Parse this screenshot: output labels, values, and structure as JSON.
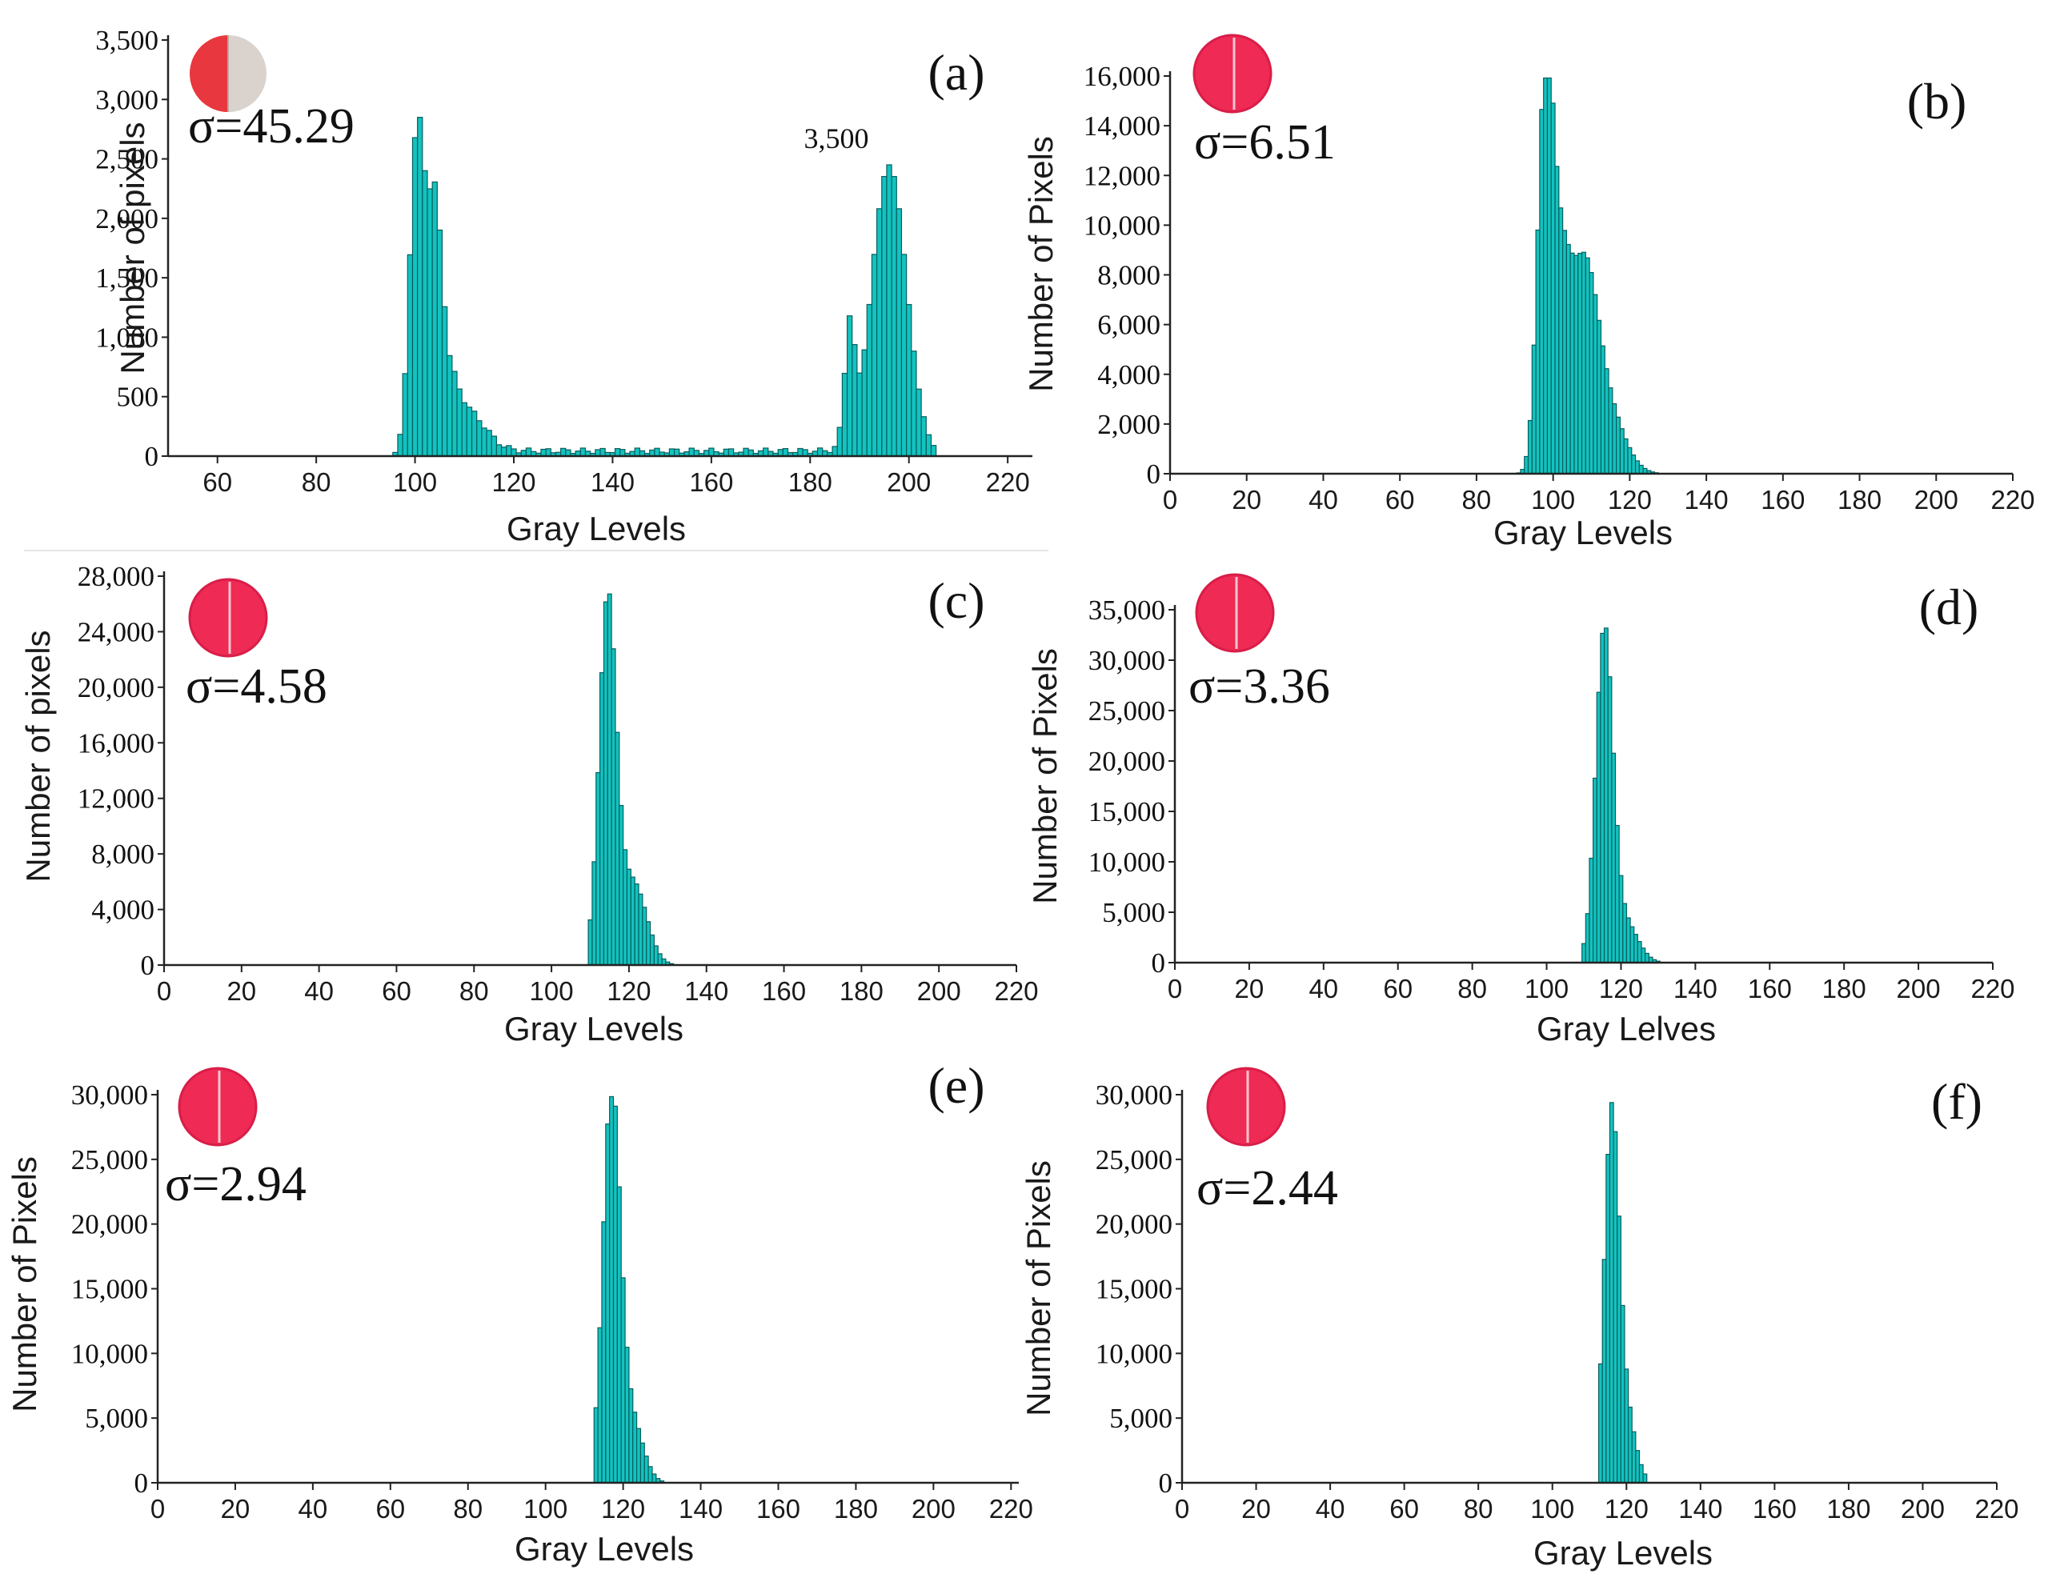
{
  "chart_data": [
    {
      "type": "bar",
      "panel_label": "(a)",
      "sigma": "σ=45.29",
      "xlabel": "Gray Levels",
      "ylabel": "Number of pixels",
      "xlim": [
        50,
        225
      ],
      "ylim": [
        0,
        3500
      ],
      "xticks": [
        60,
        80,
        100,
        120,
        140,
        160,
        180,
        200,
        220
      ],
      "yticks": [
        0,
        500,
        1000,
        1500,
        2000,
        2500,
        3000,
        3500
      ],
      "ytick_labels": [
        "0",
        "500",
        "1,000",
        "1,500",
        "2,000",
        "2,500",
        "3,000",
        "3,500"
      ],
      "annotation": "3,500",
      "bar_color": "#12c3c0",
      "thumbnail": "half-red",
      "peaks": [
        {
          "center": 100.5,
          "sigma": 1.5,
          "amp": 2750
        },
        {
          "center": 104,
          "sigma": 1.3,
          "amp": 1500
        },
        {
          "center": 105.5,
          "sigma": 2.5,
          "amp": 700
        },
        {
          "center": 111,
          "sigma": 3.5,
          "amp": 300
        },
        {
          "center": 188,
          "sigma": 1.0,
          "amp": 1000
        },
        {
          "center": 196,
          "sigma": 3.5,
          "amp": 2450
        }
      ],
      "baseline": 45,
      "baseline_range": [
        108,
        186
      ],
      "support": [
        96,
        205
      ]
    },
    {
      "type": "bar",
      "panel_label": "(b)",
      "sigma": "σ=6.51",
      "xlabel": "Gray Levels",
      "ylabel": "Number of Pixels",
      "xlim": [
        0,
        220
      ],
      "ylim": [
        0,
        16000
      ],
      "xticks": [
        0,
        20,
        40,
        60,
        80,
        100,
        120,
        140,
        160,
        180,
        200,
        220
      ],
      "yticks": [
        0,
        2000,
        4000,
        6000,
        8000,
        10000,
        12000,
        14000,
        16000
      ],
      "ytick_labels": [
        "0",
        "2,000",
        "4,000",
        "6,000",
        "8,000",
        "10,000",
        "12,000",
        "14,000",
        "16,000"
      ],
      "bar_color": "#12c3c0",
      "thumbnail": "full-red",
      "peaks": [
        {
          "center": 98,
          "sigma": 2.0,
          "amp": 15500
        },
        {
          "center": 102,
          "sigma": 2.5,
          "amp": 6800
        },
        {
          "center": 108,
          "sigma": 3.5,
          "amp": 7500
        },
        {
          "center": 114,
          "sigma": 4.5,
          "amp": 2500
        }
      ],
      "support": [
        88,
        135
      ]
    },
    {
      "type": "bar",
      "panel_label": "(c)",
      "sigma": "σ=4.58",
      "xlabel": "Gray Levels",
      "ylabel": "Number of pixels",
      "xlim": [
        0,
        220
      ],
      "ylim": [
        0,
        28000
      ],
      "xticks": [
        0,
        20,
        40,
        60,
        80,
        100,
        120,
        140,
        160,
        180,
        200,
        220
      ],
      "yticks": [
        0,
        4000,
        8000,
        12000,
        16000,
        20000,
        24000,
        28000
      ],
      "ytick_labels": [
        "0",
        "4,000",
        "8,000",
        "12,000",
        "16,000",
        "20,000",
        "24,000",
        "28,000"
      ],
      "bar_color": "#12c3c0",
      "thumbnail": "full-red",
      "peaks": [
        {
          "center": 114.5,
          "sigma": 2.2,
          "amp": 26000
        },
        {
          "center": 121,
          "sigma": 3.5,
          "amp": 6000
        }
      ],
      "support": [
        110,
        137
      ]
    },
    {
      "type": "bar",
      "panel_label": "(d)",
      "sigma": "σ=3.36",
      "xlabel": "Gray Lelves",
      "ylabel": "Number of Pixels",
      "xlim": [
        0,
        220
      ],
      "ylim": [
        0,
        35000
      ],
      "xticks": [
        0,
        20,
        40,
        60,
        80,
        100,
        120,
        140,
        160,
        180,
        200,
        220
      ],
      "yticks": [
        0,
        5000,
        10000,
        15000,
        20000,
        25000,
        30000,
        35000
      ],
      "ytick_labels": [
        "0",
        "5,000",
        "10,000",
        "15,000",
        "20,000",
        "25,000",
        "30,000",
        "35,000"
      ],
      "bar_color": "#12c3c0",
      "thumbnail": "full-red",
      "peaks": [
        {
          "center": 115.5,
          "sigma": 2.3,
          "amp": 32500
        },
        {
          "center": 121,
          "sigma": 3.5,
          "amp": 4000
        }
      ],
      "support": [
        110,
        137
      ]
    },
    {
      "type": "bar",
      "panel_label": "(e)",
      "sigma": "σ=2.94",
      "xlabel": "Gray Levels",
      "ylabel": "Number of Pixels",
      "xlim": [
        0,
        222
      ],
      "ylim": [
        0,
        30000
      ],
      "xticks": [
        0,
        20,
        40,
        60,
        80,
        100,
        120,
        140,
        160,
        180,
        200,
        220
      ],
      "yticks": [
        0,
        5000,
        10000,
        15000,
        20000,
        25000,
        30000
      ],
      "ytick_labels": [
        "0",
        "5,000",
        "10,000",
        "15,000",
        "20,000",
        "25,000",
        "30,000"
      ],
      "bar_color": "#12c3c0",
      "thumbnail": "full-red",
      "peaks": [
        {
          "center": 117,
          "sigma": 2.2,
          "amp": 30000
        },
        {
          "center": 122,
          "sigma": 3.0,
          "amp": 5000
        }
      ],
      "support": [
        113,
        130
      ]
    },
    {
      "type": "bar",
      "panel_label": "(f)",
      "sigma": "σ=2.44",
      "xlabel": "Gray Levels",
      "ylabel": "Number of Pixels",
      "xlim": [
        0,
        220
      ],
      "ylim": [
        0,
        30000
      ],
      "xticks": [
        0,
        20,
        40,
        60,
        80,
        100,
        120,
        140,
        160,
        180,
        200,
        220
      ],
      "yticks": [
        0,
        5000,
        10000,
        15000,
        20000,
        25000,
        30000
      ],
      "ytick_labels": [
        "0",
        "5,000",
        "10,000",
        "15,000",
        "20,000",
        "25,000",
        "30,000"
      ],
      "bar_color": "#12c3c0",
      "thumbnail": "full-red",
      "peaks": [
        {
          "center": 116,
          "sigma": 2.0,
          "amp": 28000
        },
        {
          "center": 120,
          "sigma": 2.5,
          "amp": 5000
        }
      ],
      "support": [
        113,
        125
      ]
    }
  ]
}
